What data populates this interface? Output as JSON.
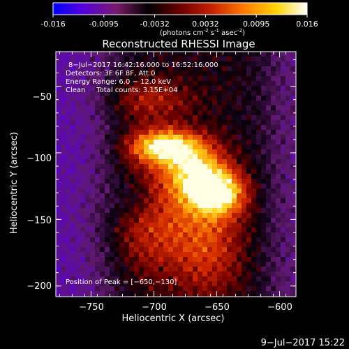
{
  "colorbar": {
    "ticks": [
      "-0.016",
      "-0.0095",
      "-0.0032",
      "0.0032",
      "0.0095",
      "0.016"
    ],
    "units_prefix": "(photons cm",
    "units_e1": "-2",
    "units_mid1": " s",
    "units_e2": "-1",
    "units_mid2": " asec",
    "units_e3": "-2",
    "units_suffix": ")",
    "colors": [
      "#0000ff",
      "#5a00d8",
      "#7a1a6a",
      "#000000",
      "#6a0000",
      "#c82000",
      "#ff7a00",
      "#ffd200",
      "#ffffff"
    ]
  },
  "chart_data": {
    "type": "heatmap",
    "title": "Reconstructed RHESSI Image",
    "xlabel": "Heliocentric X (arcsec)",
    "ylabel": "Heliocentric Y (arcsec)",
    "xlim": [
      -778,
      -587
    ],
    "ylim": [
      -208,
      -24
    ],
    "xticks": [
      -750,
      -700,
      -650,
      -600
    ],
    "yticks": [
      -50,
      -100,
      -150,
      -200
    ],
    "x_tick_labels": [
      "−750",
      "−700",
      "−650",
      "−600"
    ],
    "y_tick_labels": [
      "−50",
      "−100",
      "−150",
      "−200"
    ],
    "colorbar_range": [
      -0.016,
      0.016
    ],
    "peak_position": [
      -650,
      -130
    ],
    "annotations": [
      "8−Jul−2017 16:42:16.000 to 16:52:16.000",
      "Detectors: 3F 6F 8F, Att 0",
      "Energy Range: 6.0 − 12.0 keV",
      "Clean     Total counts: 3.15E+04"
    ],
    "peak_label": "Position of Peak = [−650,−130]"
  },
  "footer": {
    "timestamp": "9−Jul−2017 15:22"
  }
}
